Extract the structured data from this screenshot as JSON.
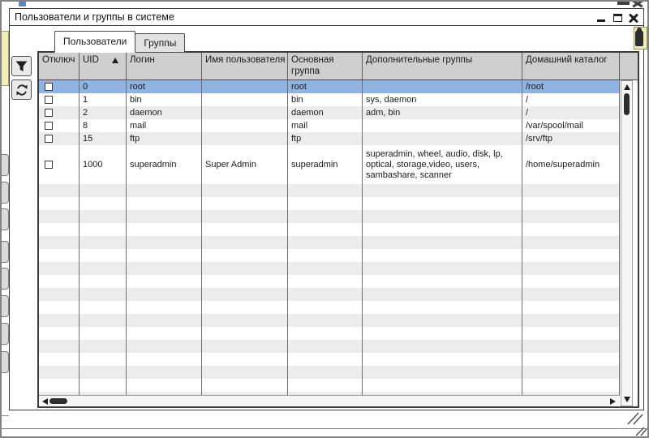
{
  "window": {
    "title": "Пользователи и группы в системе",
    "controls": [
      {
        "name": "minimize",
        "icon": "minimize-icon"
      },
      {
        "name": "maximize",
        "icon": "maximize-icon"
      },
      {
        "name": "close",
        "icon": "close-icon"
      }
    ]
  },
  "tabs": [
    {
      "label": "Пользователи",
      "active": true
    },
    {
      "label": "Группы",
      "active": false
    }
  ],
  "toolbar": {
    "buttons": [
      {
        "name": "filter",
        "icon": "filter-icon"
      },
      {
        "name": "refresh",
        "icon": "refresh-icon"
      }
    ]
  },
  "table": {
    "columns": [
      {
        "id": "disabled",
        "label": "Отключ"
      },
      {
        "id": "uid",
        "label": "UID"
      },
      {
        "id": "login",
        "label": "Логин"
      },
      {
        "id": "name",
        "label": "Имя пользователя"
      },
      {
        "id": "primary_group",
        "label": "Основная группа"
      },
      {
        "id": "extra_groups",
        "label": "Дополнительные группы"
      },
      {
        "id": "home",
        "label": "Домашний каталог"
      }
    ],
    "sort": {
      "column": "uid",
      "direction": "ascending"
    },
    "rows": [
      {
        "disabled": false,
        "uid": "0",
        "login": "root",
        "name": "",
        "primary_group": "root",
        "extra_groups": "",
        "home": "/root",
        "selected": true,
        "tall": false
      },
      {
        "disabled": false,
        "uid": "1",
        "login": "bin",
        "name": "",
        "primary_group": "bin",
        "extra_groups": "sys, daemon",
        "home": "/",
        "selected": false,
        "tall": false
      },
      {
        "disabled": false,
        "uid": "2",
        "login": "daemon",
        "name": "",
        "primary_group": "daemon",
        "extra_groups": "adm, bin",
        "home": "/",
        "selected": false,
        "tall": false
      },
      {
        "disabled": false,
        "uid": "8",
        "login": "mail",
        "name": "",
        "primary_group": "mail",
        "extra_groups": "",
        "home": "/var/spool/mail",
        "selected": false,
        "tall": false
      },
      {
        "disabled": false,
        "uid": "15",
        "login": "ftp",
        "name": "",
        "primary_group": "ftp",
        "extra_groups": "",
        "home": "/srv/ftp",
        "selected": false,
        "tall": false
      },
      {
        "disabled": false,
        "uid": "1000",
        "login": "superadmin",
        "name": "Super Admin",
        "primary_group": "superadmin",
        "extra_groups": "superadmin, wheel, audio, disk, lp, optical, storage,video, users, sambashare, scanner",
        "home": "/home/superadmin",
        "selected": false,
        "tall": true
      }
    ]
  },
  "colors": {
    "selection": "#8fb3e2",
    "header_bg": "#cfcfcf",
    "row_stripe": "#ececec",
    "tab_inactive_bg": "#e1e1e1",
    "underlay_yellow": "#f2efb7"
  },
  "icons": [
    "filter-icon",
    "refresh-icon",
    "sort-ascending-icon",
    "minimize-icon",
    "maximize-icon",
    "close-icon",
    "scroll-up-icon",
    "scroll-down-icon",
    "scroll-left-icon",
    "scroll-right-icon",
    "resize-grip-icon",
    "user-silhouette-icon",
    "app-icon"
  ]
}
